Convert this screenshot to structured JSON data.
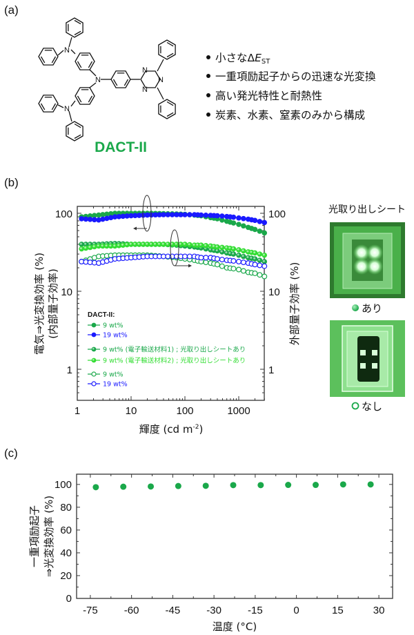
{
  "panel_labels": {
    "a": "(a)",
    "b": "(b)",
    "c": "(c)"
  },
  "molecule": {
    "name": "DACT-II",
    "atoms": {
      "carbazole_n": "N",
      "amine_n": "N",
      "triazine_n": "N"
    }
  },
  "features": {
    "bullet1": {
      "prefix": "小さな",
      "delta": "Δ",
      "e": "E",
      "sub": "ST"
    },
    "bullet2": "一重項励起子からの迅速な光変換",
    "bullet3": "高い発光特性と耐熱性",
    "bullet4": "炭素、水素、窒素のみから構成"
  },
  "photos": {
    "title": "光取り出しシート",
    "with_label": "あり",
    "without_label": "なし"
  },
  "colors": {
    "green": "#1aa84a",
    "light_green": "#33dd33",
    "blue": "#1a1aff"
  },
  "chart_data": [
    {
      "type": "line",
      "panel": "(b)",
      "xlabel": "輝度 (cd m",
      "xlabel_sup": "-2",
      "xlabel_close": ")",
      "ylabel_left_1": "電気⇒光変換効率 (%)",
      "ylabel_left_2": "(内部量子効率)",
      "ylabel_right": "外部量子効率 (%)",
      "xscale": "log",
      "yscale": "log",
      "xlim": [
        1,
        3000
      ],
      "ylim": [
        0.4,
        122
      ],
      "xticks": [
        "1",
        "10",
        "100",
        "1000"
      ],
      "yticks_left": [
        "1",
        "10",
        "100"
      ],
      "yticks_right": [
        "1",
        "10",
        "100"
      ],
      "legend_title": "DACT-II:",
      "legend_position": "bottom-left",
      "x": [
        1.2,
        2.5,
        5,
        10,
        20,
        40,
        70,
        100,
        150,
        200,
        300,
        400,
        600,
        800,
        1000,
        1500,
        2000,
        3000
      ],
      "series": [
        {
          "name": "9 wt%",
          "style": "filled",
          "color": "#1aa84a",
          "axis": "left",
          "values": [
            90,
            95,
            100,
            100,
            100,
            99,
            98,
            97,
            95,
            93,
            88,
            85,
            79,
            75,
            72,
            66,
            62,
            56
          ]
        },
        {
          "name": "19 wt%",
          "style": "filled",
          "color": "#1a1aff",
          "axis": "left",
          "values": [
            85,
            82,
            90,
            93,
            95,
            96,
            96,
            96,
            96,
            95,
            94,
            93,
            91,
            89,
            87,
            84,
            81,
            76
          ]
        },
        {
          "name": "9 wt% (電子輸送材料1) ; 光取り出しシートあり",
          "style": "half",
          "color": "#1aa84a",
          "axis": "right",
          "values": [
            40,
            40,
            41,
            40,
            40,
            40,
            39,
            38,
            37,
            36,
            34,
            33,
            31,
            30,
            29,
            27,
            26,
            24
          ]
        },
        {
          "name": "9 wt% (電子輸送材料2) ; 光取り出しシートあり",
          "style": "half",
          "color": "#33dd33",
          "axis": "right",
          "values": [
            35,
            38,
            38,
            40,
            40,
            40,
            40,
            40,
            39,
            39,
            38,
            37,
            36,
            35,
            34,
            32,
            31,
            29
          ]
        },
        {
          "name": "9 wt%",
          "style": "open",
          "color": "#1aa84a",
          "axis": "right",
          "values": [
            24,
            28,
            29,
            29,
            29,
            28,
            27,
            26,
            25,
            24,
            23,
            22,
            20,
            19.5,
            19,
            17.5,
            17,
            15.5
          ]
        },
        {
          "name": "19 wt%",
          "style": "open",
          "color": "#1a1aff",
          "axis": "right",
          "values": [
            24,
            23,
            26,
            27,
            28,
            28,
            28,
            28,
            28,
            27,
            27,
            26,
            25,
            24.5,
            24,
            23,
            22,
            21
          ]
        }
      ]
    },
    {
      "type": "scatter",
      "panel": "(c)",
      "xlabel": "温度 (°C)",
      "ylabel_1": "一重項励起子",
      "ylabel_2": "⇒光変換効率 (%)",
      "xlim": [
        -80,
        35
      ],
      "ylim": [
        0,
        109
      ],
      "xticks": [
        "-75",
        "-60",
        "-45",
        "-30",
        "-15",
        "0",
        "15",
        "30"
      ],
      "yticks": [
        "0",
        "20",
        "40",
        "60",
        "80",
        "100"
      ],
      "color": "#1aa84a",
      "x": [
        -73,
        -63,
        -53,
        -43,
        -33,
        -23,
        -13,
        -3,
        7,
        17,
        27
      ],
      "y": [
        97.6,
        98.0,
        98.2,
        98.6,
        98.8,
        99.4,
        99.4,
        99.6,
        99.6,
        100,
        100
      ]
    }
  ]
}
